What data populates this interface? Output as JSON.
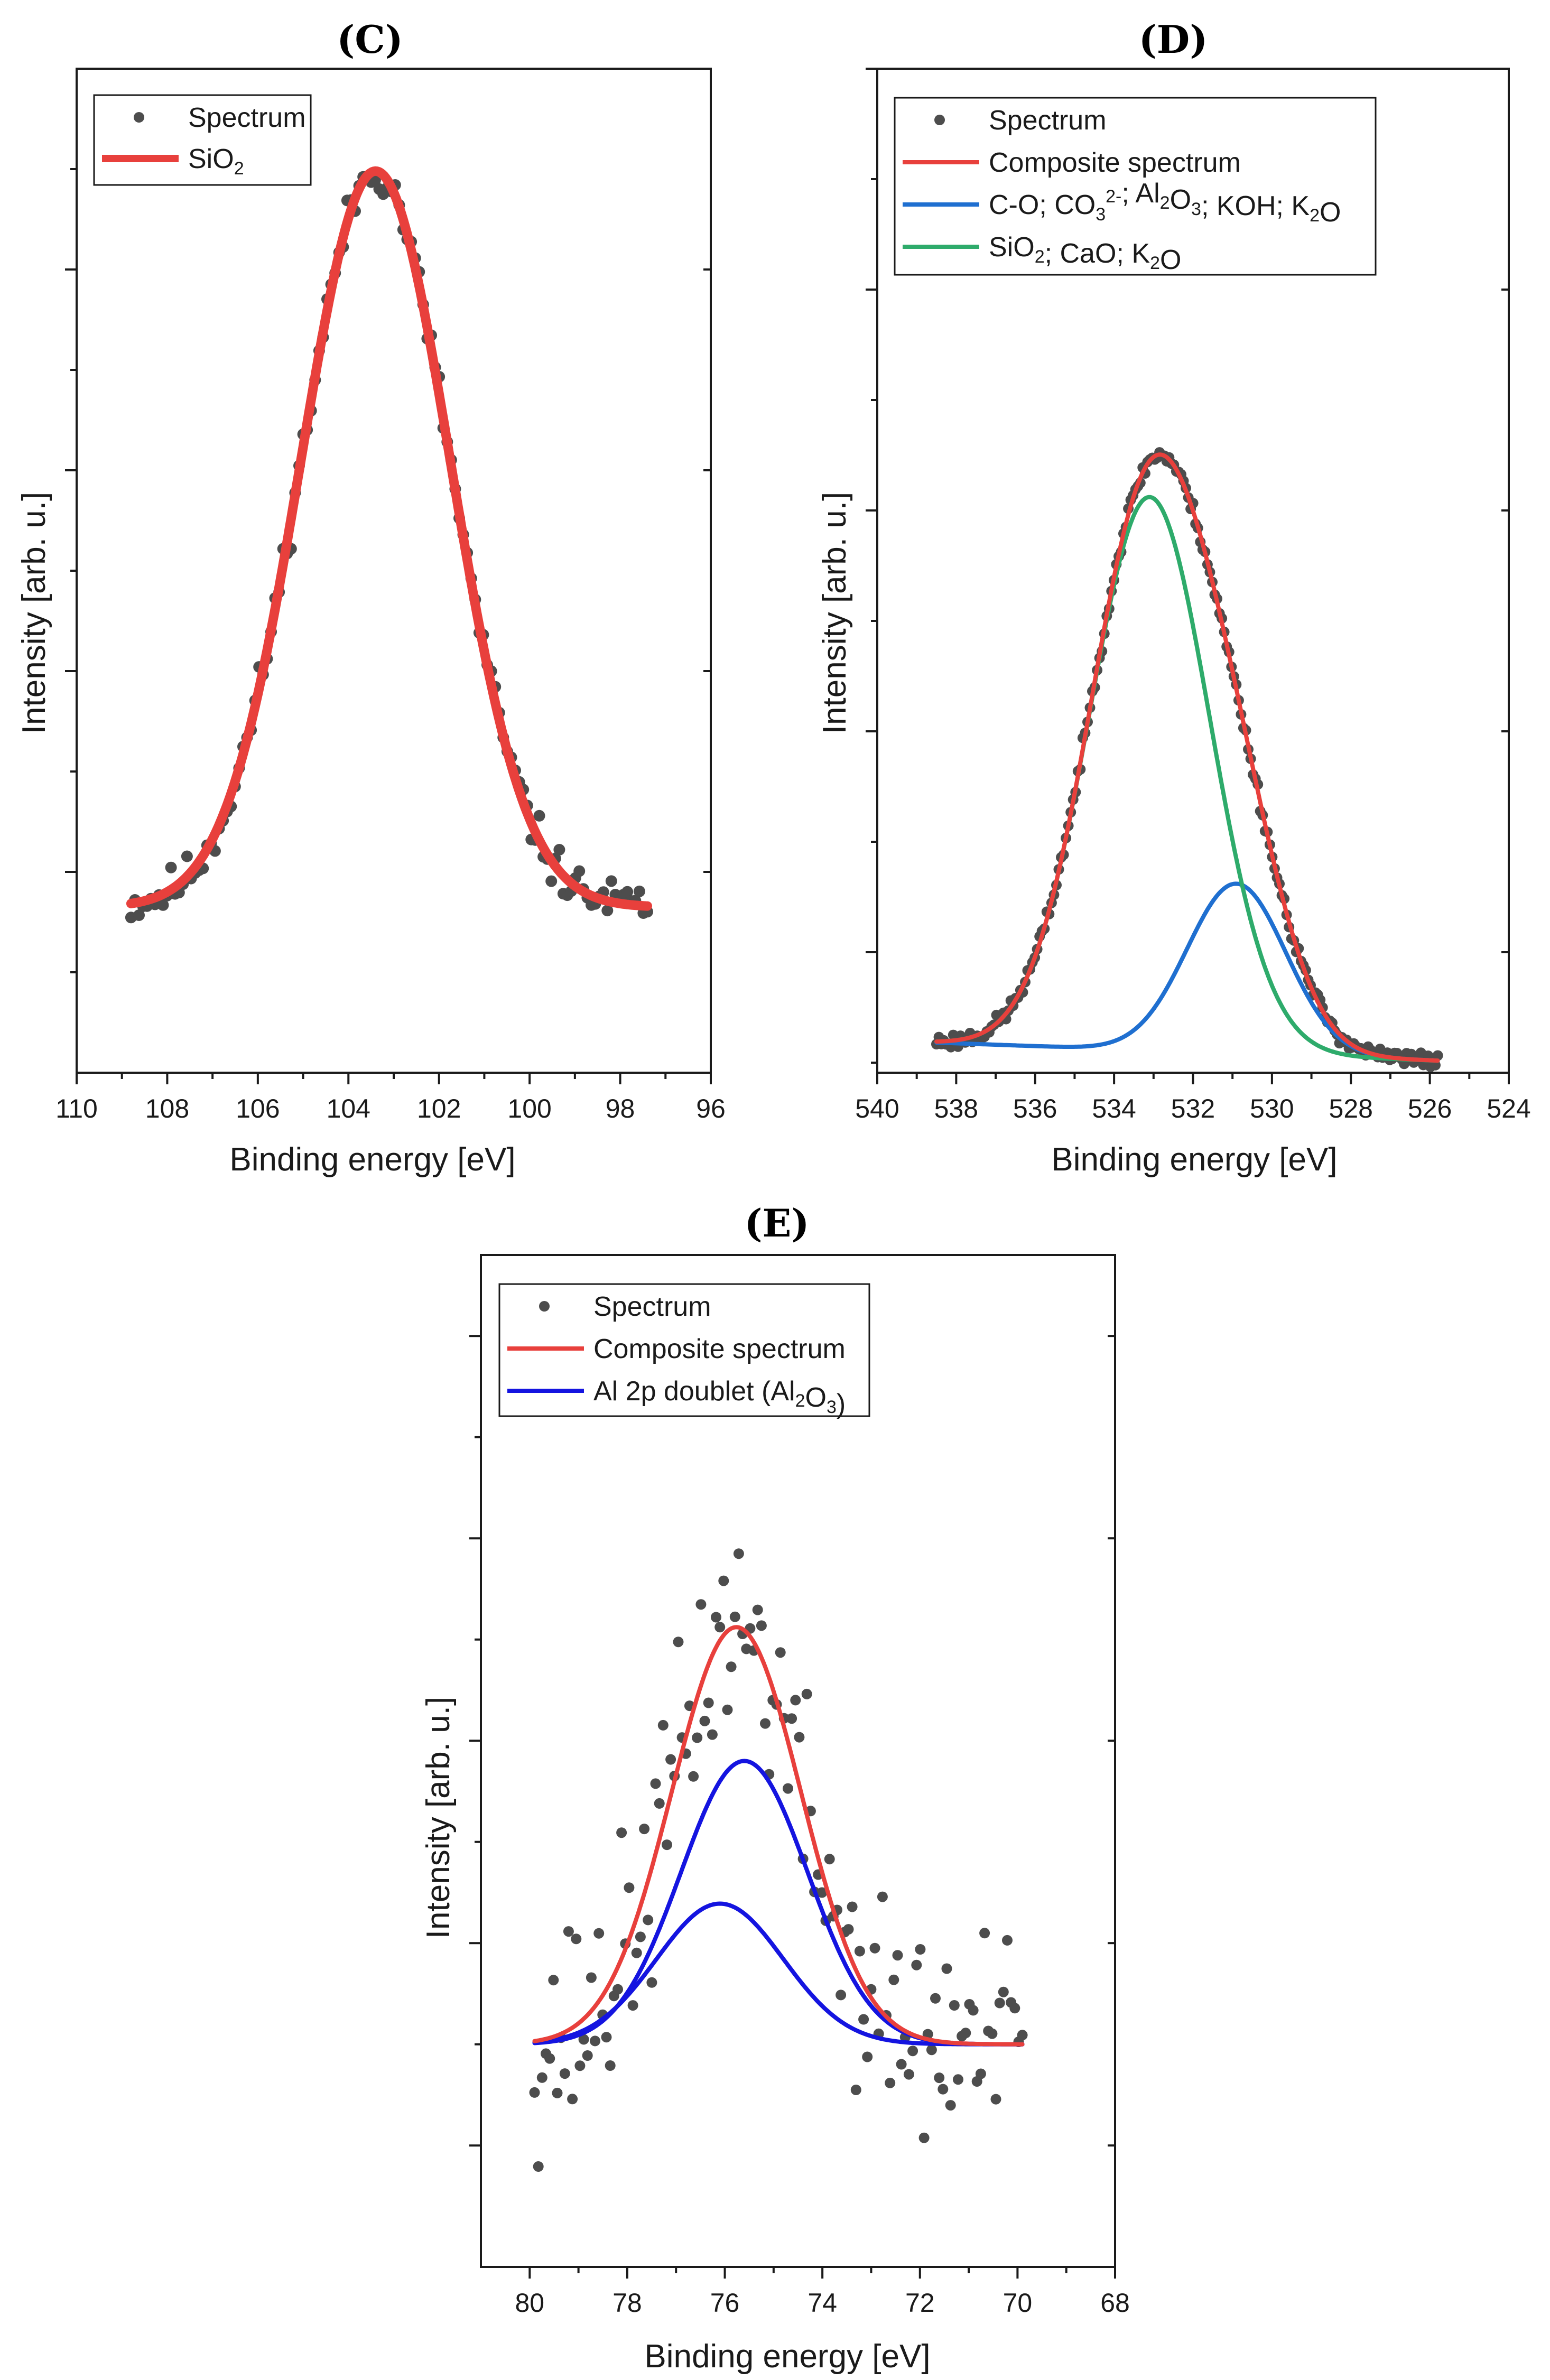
{
  "chart_data": [
    {
      "id": "C",
      "type": "scatter",
      "title": "(C)",
      "xlabel": "Binding energy [eV]",
      "ylabel": "Intensity [arb. u.]",
      "xlim": [
        110,
        96
      ],
      "ylim": [
        0,
        100
      ],
      "xticks": [
        110,
        108,
        106,
        104,
        102,
        100,
        98,
        96
      ],
      "xtick_labels": [
        "110",
        "108",
        "106",
        "104",
        "102",
        "100",
        "98",
        "96"
      ],
      "yticks_major": [
        20,
        40,
        60,
        80
      ],
      "yticks_minor": [
        10,
        30,
        50,
        70,
        90
      ],
      "y_tick_labels_shown": false,
      "legend_position": "top-left",
      "legend": [
        {
          "label": "Spectrum",
          "kind": "marker",
          "color": "#4d4d4d"
        },
        {
          "label": "SiO",
          "sub": "2",
          "kind": "line",
          "color": "#e8403c"
        }
      ],
      "series": [
        {
          "name": "Spectrum",
          "kind": "points",
          "color": "#4d4d4d",
          "noise": 1.1,
          "seed": 11,
          "x_start": 108.8,
          "x_end": 97.4,
          "n": 130
        },
        {
          "name": "SiO2",
          "kind": "line",
          "color": "#e8403c",
          "width": 18,
          "components": [
            {
              "center": 103.4,
              "amp": 73.3,
              "sigma": 1.65
            }
          ]
        }
      ],
      "baseline": 16.5
    },
    {
      "id": "D",
      "type": "scatter",
      "title": "(D)",
      "xlabel": "Binding energy [eV]",
      "ylabel": "Intensity [arb. u.]",
      "xlim": [
        540,
        524
      ],
      "ylim": [
        0,
        100
      ],
      "xticks": [
        540,
        538,
        536,
        534,
        532,
        530,
        528,
        526,
        524
      ],
      "xtick_labels": [
        "540",
        "538",
        "536",
        "534",
        "532",
        "530",
        "528",
        "526",
        "524"
      ],
      "yticks_major": [
        12,
        34,
        56,
        78,
        100
      ],
      "yticks_minor": [
        1,
        23,
        45,
        67,
        89
      ],
      "y_tick_labels_shown": false,
      "legend_position": "top-left",
      "legend": [
        {
          "label": "Spectrum",
          "kind": "marker",
          "color": "#4d4d4d"
        },
        {
          "label": "Composite spectrum",
          "kind": "line",
          "color": "#e8403c"
        },
        {
          "parts": [
            {
              "t": "C-O; CO"
            },
            {
              "t": "3",
              "sub": true
            },
            {
              "t": "2-",
              "sup": true
            },
            {
              "t": "; Al"
            },
            {
              "t": "2",
              "sub": true
            },
            {
              "t": "O"
            },
            {
              "t": "3",
              "sub": true
            },
            {
              "t": "; KOH; K"
            },
            {
              "t": "2",
              "sub": true
            },
            {
              "t": "O"
            }
          ],
          "kind": "line",
          "color": "#1f6fd0"
        },
        {
          "parts": [
            {
              "t": "SiO"
            },
            {
              "t": "2",
              "sub": true
            },
            {
              "t": "; CaO; K"
            },
            {
              "t": "2",
              "sub": true
            },
            {
              "t": "O"
            }
          ],
          "kind": "line",
          "color": "#2eab6b"
        }
      ],
      "series": [
        {
          "name": "Spectrum",
          "kind": "points",
          "color": "#4d4d4d",
          "noise": 0.4,
          "seed": 23,
          "x_start": 538.5,
          "x_end": 525.8,
          "n": 210
        },
        {
          "name": "Composite spectrum",
          "kind": "line",
          "color": "#e8403c",
          "width": 8,
          "components": [
            {
              "center": 533.1,
              "amp": 55.1,
              "sigma": 1.52
            },
            {
              "center": 530.9,
              "amp": 16.9,
              "sigma": 1.25
            }
          ]
        },
        {
          "name": "C-O; CO3 2-; Al2O3; KOH; K2O",
          "kind": "line",
          "color": "#1f6fd0",
          "width": 8,
          "components": [
            {
              "center": 530.9,
              "amp": 16.9,
              "sigma": 1.25
            }
          ]
        },
        {
          "name": "SiO2; CaO; K2O",
          "kind": "line",
          "color": "#2eab6b",
          "width": 8,
          "components": [
            {
              "center": 533.1,
              "amp": 55.1,
              "sigma": 1.52
            }
          ]
        }
      ],
      "baseline": 3.0,
      "baseline_slope_to": 1.2
    },
    {
      "id": "E",
      "type": "scatter",
      "title": "(E)",
      "xlabel": "Binding energy [eV]",
      "ylabel": "Intensity [arb. u.]",
      "xlim": [
        81,
        68
      ],
      "ylim": [
        0,
        100
      ],
      "xticks": [
        80,
        78,
        76,
        74,
        72,
        70,
        68
      ],
      "xtick_labels": [
        "80",
        "78",
        "76",
        "74",
        "72",
        "70",
        "68"
      ],
      "yticks_major": [
        12,
        32,
        52,
        72,
        92
      ],
      "yticks_minor": [
        22,
        42,
        62,
        82
      ],
      "y_tick_labels_shown": false,
      "legend_position": "top-left",
      "legend": [
        {
          "label": "Spectrum",
          "kind": "marker",
          "color": "#4d4d4d"
        },
        {
          "label": "Composite spectrum",
          "kind": "line",
          "color": "#e8403c"
        },
        {
          "parts": [
            {
              "t": "Al 2p doublet (Al"
            },
            {
              "t": "2",
              "sub": true
            },
            {
              "t": "O"
            },
            {
              "t": "3",
              "sub": true
            },
            {
              "t": ")"
            }
          ],
          "kind": "line",
          "color": "#1414e0"
        }
      ],
      "series": [
        {
          "name": "Spectrum",
          "kind": "points",
          "color": "#4d4d4d",
          "noise": 5.5,
          "seed": 37,
          "x_start": 79.9,
          "x_end": 69.9,
          "n": 130
        },
        {
          "name": "Composite spectrum",
          "kind": "line",
          "color": "#e8403c",
          "width": 8,
          "components": [
            {
              "center": 75.6,
              "amp": 28.0,
              "sigma": 1.3
            },
            {
              "center": 76.1,
              "amp": 13.9,
              "sigma": 1.3
            }
          ]
        },
        {
          "name": "Al 2p doublet (Al2O3) 1",
          "kind": "line",
          "color": "#1414e0",
          "width": 8,
          "components": [
            {
              "center": 75.6,
              "amp": 28.0,
              "sigma": 1.3
            }
          ]
        },
        {
          "name": "Al 2p doublet (Al2O3) 2",
          "kind": "line",
          "color": "#1414e0",
          "width": 8,
          "components": [
            {
              "center": 76.1,
              "amp": 13.9,
              "sigma": 1.3
            }
          ]
        }
      ],
      "baseline": 22.0
    }
  ]
}
